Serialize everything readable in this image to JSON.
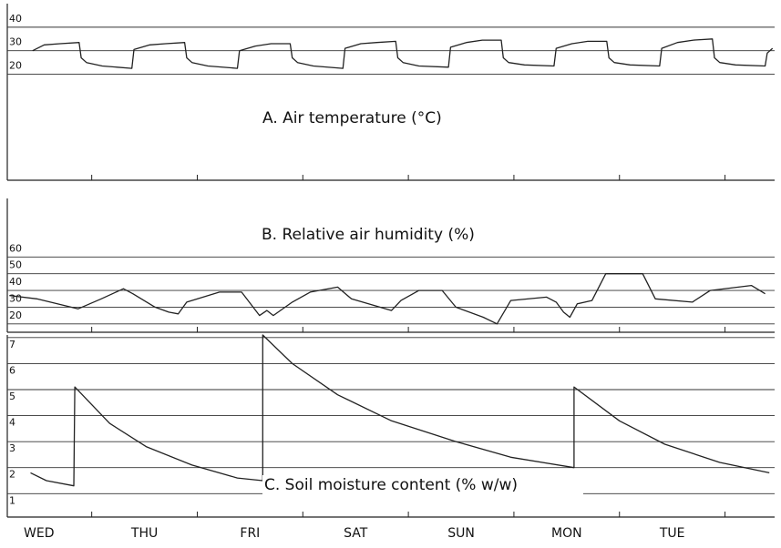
{
  "chart_data": [
    {
      "type": "line",
      "title": "A. Air temperature (°C)",
      "x": [
        0.44,
        0.55,
        0.7,
        0.88,
        0.9,
        0.95,
        1.1,
        1.38,
        1.4,
        1.55,
        1.7,
        1.88,
        1.9,
        1.95,
        2.1,
        2.38,
        2.4,
        2.55,
        2.7,
        2.88,
        2.9,
        2.95,
        3.1,
        3.38,
        3.4,
        3.55,
        3.7,
        3.88,
        3.9,
        3.95,
        4.1,
        4.38,
        4.4,
        4.55,
        4.7,
        4.88,
        4.9,
        4.95,
        5.1,
        5.38,
        5.4,
        5.55,
        5.7,
        5.88,
        5.9,
        5.95,
        6.1,
        6.38,
        6.4,
        6.55,
        6.7,
        6.88,
        6.9,
        6.95,
        7.1,
        7.38,
        7.4,
        7.45
      ],
      "values": [
        30,
        32.5,
        33,
        33.5,
        27,
        25,
        23.5,
        22.5,
        30.5,
        32.5,
        33,
        33.5,
        27,
        25,
        23.5,
        22.5,
        30,
        32,
        33,
        33,
        27,
        25,
        23.5,
        22.5,
        31,
        33,
        33.5,
        34,
        27,
        25,
        23.5,
        23,
        31.5,
        33.5,
        34.5,
        34.5,
        27,
        25,
        24,
        23.5,
        31,
        33,
        34,
        34,
        27,
        25,
        24,
        23.5,
        31,
        33.5,
        34.5,
        35,
        27,
        25,
        24,
        23.5,
        29,
        31
      ],
      "color": "#222222",
      "xlim": [
        0.2,
        7.47
      ],
      "xticks": [
        1,
        2,
        3,
        4,
        5,
        6,
        7
      ],
      "ylim": [
        -25,
        50
      ],
      "yticks": [
        20,
        30,
        40
      ],
      "grid": true
    },
    {
      "type": "line",
      "title": "B. Relative air humidity (%)",
      "x": [
        0.22,
        0.48,
        0.87,
        1.09,
        1.3,
        1.39,
        1.6,
        1.73,
        1.82,
        1.9,
        2.21,
        2.42,
        2.59,
        2.66,
        2.72,
        2.9,
        3.07,
        3.33,
        3.46,
        3.84,
        3.93,
        4.1,
        4.32,
        4.45,
        4.71,
        4.84,
        4.97,
        5.31,
        5.4,
        5.47,
        5.53,
        5.6,
        5.74,
        5.87,
        6.22,
        6.34,
        6.69,
        6.86,
        7.25,
        7.38
      ],
      "values": [
        37,
        35,
        29,
        35,
        41,
        38,
        30,
        27,
        26,
        33,
        39,
        39,
        25,
        28,
        25,
        33,
        39,
        42,
        35,
        28,
        34,
        40,
        40,
        30,
        24,
        20,
        34,
        36,
        33,
        27,
        24,
        32,
        34,
        50,
        50,
        35,
        33,
        40,
        43,
        38
      ],
      "color": "#222222",
      "xlim": [
        0.2,
        7.47
      ],
      "xticks": [
        1,
        2,
        3,
        4,
        5,
        6,
        7
      ],
      "ylim": [
        15,
        95
      ],
      "yticks": [
        20,
        30,
        40,
        50,
        60
      ],
      "grid": true
    },
    {
      "type": "line",
      "title": "C. Soil moisture content (% w/w)",
      "categories": [
        "WED",
        "THU",
        "FRI",
        "SAT",
        "SUN",
        "MON",
        "TUE"
      ],
      "x": [
        0.42,
        0.57,
        0.83,
        0.84,
        1.17,
        1.52,
        1.95,
        2.38,
        2.62,
        2.62,
        2.9,
        3.33,
        3.84,
        4.45,
        4.97,
        5.57,
        5.57,
        6,
        6.43,
        6.95,
        7.42
      ],
      "values": [
        1.8,
        1.5,
        1.3,
        5.1,
        3.7,
        2.8,
        2.1,
        1.6,
        1.5,
        7.1,
        6.0,
        4.8,
        3.8,
        3.0,
        2.4,
        2.0,
        5.1,
        3.8,
        2.9,
        2.2,
        1.8
      ],
      "color": "#222222",
      "xlim": [
        0.2,
        7.47
      ],
      "xticks": [
        1,
        2,
        3,
        4,
        5,
        6,
        7
      ],
      "ylim": [
        0.1,
        7.1
      ],
      "yticks": [
        1,
        2,
        3,
        4,
        5,
        6,
        7
      ],
      "grid": true
    }
  ]
}
